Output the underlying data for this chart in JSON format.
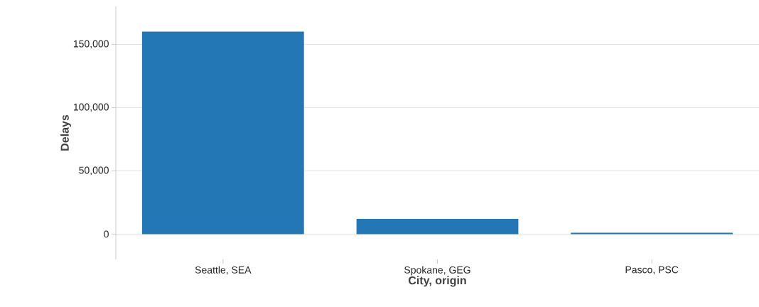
{
  "chart_data": {
    "type": "bar",
    "xlabel": "City, origin",
    "ylabel": "Delays",
    "categories": [
      "Seattle, SEA",
      "Spokane, GEG",
      "Pasco, PSC"
    ],
    "values": [
      160000,
      12000,
      1000
    ],
    "color": "#2277b4",
    "ylim": [
      -20000,
      180000
    ],
    "yticks": [
      {
        "value": 0,
        "label": "0"
      },
      {
        "value": 50000,
        "label": "50,000"
      },
      {
        "value": 100000,
        "label": "100,000"
      },
      {
        "value": 150000,
        "label": "150,000"
      }
    ],
    "grid": "y"
  }
}
